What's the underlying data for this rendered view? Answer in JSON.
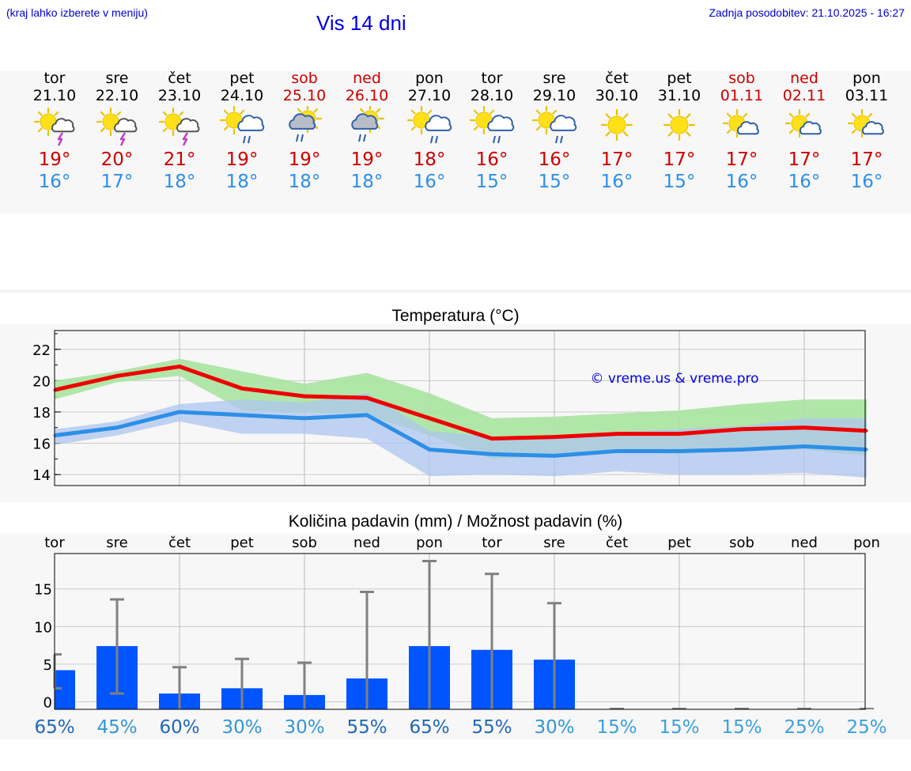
{
  "header": {
    "hint": "(kraj lahko izberete v meniju)",
    "title": "Vis 14 dni",
    "updated": "Zadnja posodobitev: 21.10.2025 - 16:27"
  },
  "colors": {
    "max_temp": "#ee0000",
    "min_temp": "#2d8fe6",
    "max_band": "#a8e3a0",
    "min_band": "#aec6f0",
    "precip_bar": "#0055ff",
    "weekend": "#cc0000",
    "watermark": "#0000dd"
  },
  "days": [
    {
      "name": "tor",
      "date": "21.10",
      "weekend": false,
      "icon": "sun-cloud-thunder-icon",
      "max": "19°",
      "min": "16°"
    },
    {
      "name": "sre",
      "date": "22.10",
      "weekend": false,
      "icon": "sun-cloud-thunder-icon",
      "max": "20°",
      "min": "17°"
    },
    {
      "name": "čet",
      "date": "23.10",
      "weekend": false,
      "icon": "sun-cloud-thunder-icon",
      "max": "21°",
      "min": "18°"
    },
    {
      "name": "pet",
      "date": "24.10",
      "weekend": false,
      "icon": "sun-cloud-rain-icon",
      "max": "19°",
      "min": "18°"
    },
    {
      "name": "sob",
      "date": "25.10",
      "weekend": true,
      "icon": "sun-grey-cloud-rain-icon",
      "max": "19°",
      "min": "18°"
    },
    {
      "name": "ned",
      "date": "26.10",
      "weekend": true,
      "icon": "sun-grey-cloud-rain-icon",
      "max": "19°",
      "min": "18°"
    },
    {
      "name": "pon",
      "date": "27.10",
      "weekend": false,
      "icon": "sun-cloud-rain-icon",
      "max": "18°",
      "min": "16°"
    },
    {
      "name": "tor",
      "date": "28.10",
      "weekend": false,
      "icon": "sun-cloud-rain-icon",
      "max": "16°",
      "min": "15°"
    },
    {
      "name": "sre",
      "date": "29.10",
      "weekend": false,
      "icon": "sun-cloud-rain-icon",
      "max": "16°",
      "min": "15°"
    },
    {
      "name": "čet",
      "date": "30.10",
      "weekend": false,
      "icon": "sun-icon",
      "max": "17°",
      "min": "16°"
    },
    {
      "name": "pet",
      "date": "31.10",
      "weekend": false,
      "icon": "sun-icon",
      "max": "17°",
      "min": "15°"
    },
    {
      "name": "sob",
      "date": "01.11",
      "weekend": true,
      "icon": "sun-small-cloud-icon",
      "max": "17°",
      "min": "16°"
    },
    {
      "name": "ned",
      "date": "02.11",
      "weekend": true,
      "icon": "sun-small-cloud-icon",
      "max": "17°",
      "min": "16°"
    },
    {
      "name": "pon",
      "date": "03.11",
      "weekend": false,
      "icon": "sun-small-cloud-icon",
      "max": "17°",
      "min": "16°"
    }
  ],
  "chart_data": [
    {
      "type": "line",
      "title": "Temperatura (°C)",
      "watermark": "© vreme.us & vreme.pro",
      "x": [
        0,
        1,
        2,
        3,
        4,
        5,
        6,
        7,
        8,
        9,
        10,
        11,
        12,
        13
      ],
      "ylim": [
        13.3,
        23.2
      ],
      "yticks": [
        "14",
        "16",
        "18",
        "20",
        "22"
      ],
      "grid": true,
      "series": [
        {
          "values": [
            19.4,
            20.3,
            20.9,
            19.5,
            19.0,
            18.9,
            17.6,
            16.3,
            16.4,
            16.6,
            16.6,
            16.9,
            17.0,
            16.8
          ],
          "band_low": [
            18.8,
            19.9,
            20.3,
            18.1,
            18.0,
            17.8,
            16.5,
            15.0,
            15.2,
            15.5,
            15.3,
            15.5,
            15.6,
            15.2
          ],
          "band_high": [
            20.0,
            20.6,
            21.4,
            20.6,
            19.8,
            20.5,
            19.2,
            17.6,
            17.7,
            17.9,
            18.1,
            18.5,
            18.8,
            18.8
          ]
        },
        {
          "values": [
            16.5,
            17.0,
            18.0,
            17.8,
            17.6,
            17.8,
            15.6,
            15.3,
            15.2,
            15.5,
            15.5,
            15.6,
            15.8,
            15.6
          ],
          "band_low": [
            15.9,
            16.5,
            17.4,
            16.6,
            16.6,
            16.3,
            13.9,
            14.0,
            13.9,
            14.2,
            14.0,
            14.0,
            14.1,
            13.8
          ],
          "band_high": [
            16.9,
            17.4,
            18.5,
            18.8,
            18.6,
            19.2,
            16.8,
            16.4,
            16.4,
            16.7,
            16.9,
            17.1,
            17.6,
            17.6
          ]
        }
      ]
    },
    {
      "type": "bar",
      "title": "Količina padavin (mm) / Možnost padavin (%)",
      "categories": [
        "tor",
        "sre",
        "čet",
        "pet",
        "sob",
        "ned",
        "pon",
        "tor",
        "sre",
        "čet",
        "pet",
        "sob",
        "ned",
        "pon"
      ],
      "values": [
        4.2,
        7.4,
        1.1,
        1.8,
        0.9,
        3.1,
        7.4,
        6.9,
        5.6,
        0,
        0,
        0,
        0,
        0
      ],
      "error_low": [
        1.8,
        1.1,
        0,
        0,
        0,
        0,
        0,
        0,
        0,
        0,
        0,
        0,
        0,
        0
      ],
      "error_high": [
        6.3,
        13.6,
        4.6,
        5.7,
        5.2,
        14.6,
        18.7,
        17.0,
        13.1,
        0,
        0,
        0,
        0,
        0
      ],
      "ylim": [
        -1,
        19.7
      ],
      "yticks": [
        "0",
        "5",
        "10",
        "15"
      ],
      "probability": [
        "65%",
        "45%",
        "60%",
        "30%",
        "30%",
        "55%",
        "65%",
        "55%",
        "30%",
        "15%",
        "15%",
        "15%",
        "25%",
        "25%"
      ],
      "probability_color": [
        "#1f67b5",
        "#3296d6",
        "#1f67b5",
        "#3296d6",
        "#3296d6",
        "#1f67b5",
        "#1f67b5",
        "#1f67b5",
        "#3296d6",
        "#3aa0dd",
        "#3aa0dd",
        "#3aa0dd",
        "#3aa0dd",
        "#3aa0dd"
      ],
      "grid": true
    }
  ]
}
